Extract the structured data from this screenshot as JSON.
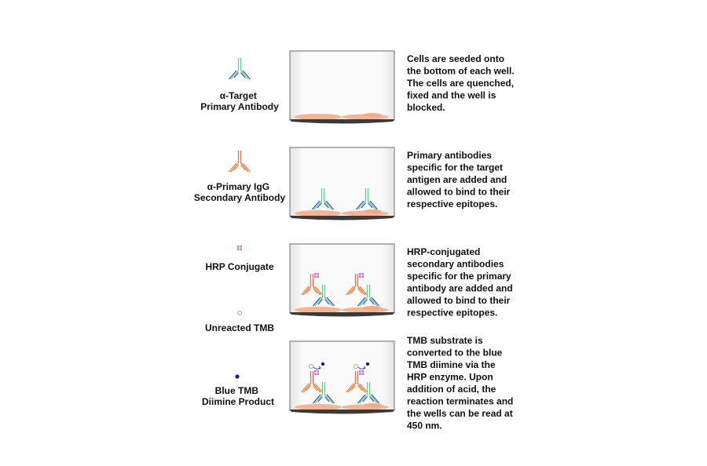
{
  "legend": {
    "primary_antibody": [
      "α-Target",
      "Primary Antibody"
    ],
    "secondary_antibody": [
      "α-Primary IgG",
      "Secondary Antibody"
    ],
    "hrp": "HRP Conjugate",
    "unreacted_tmb": "Unreacted TMB",
    "blue_tmb": [
      "Blue TMB",
      "Diimine Product"
    ]
  },
  "steps": [
    {
      "lines": [
        "Cells are seeded onto",
        "the bottom of each well.",
        "The cells are quenched,",
        "fixed and the well is",
        "blocked."
      ]
    },
    {
      "lines": [
        "Primary antibodies",
        "specific for the target",
        "antigen are added and",
        "allowed to bind to their",
        "respective epitopes."
      ]
    },
    {
      "lines": [
        "HRP-conjugated",
        "secondary antibodies",
        "specific for the primary",
        "antibody are added and",
        "allowed to bind to their",
        "respective epitopes."
      ]
    },
    {
      "lines": [
        "TMB substrate is",
        "converted to the blue",
        "TMB diimine via the",
        "HRP enzyme. Upon",
        "addition of acid, the",
        "reaction terminates and",
        "the wells can be read at",
        "450 nm."
      ]
    }
  ],
  "colors": {
    "primary_stem": "#5fd38a",
    "primary_arm": "#3a4fb8",
    "secondary_stem": "#e0705a",
    "secondary_arm": "#e8892e",
    "hrp": "#c77ad6",
    "tmb_blue": "#1a1aa8",
    "cell": "#f5b592"
  }
}
